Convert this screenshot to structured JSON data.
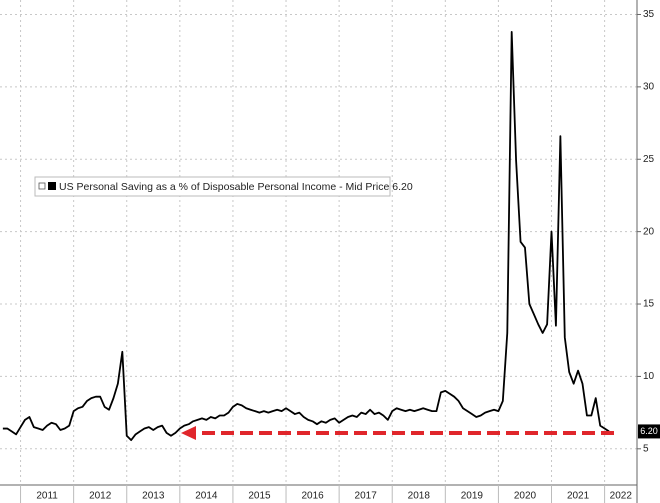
{
  "chart_data": {
    "type": "line",
    "x": [
      2010.667,
      2010.75,
      2010.833,
      2010.917,
      2011,
      2011.083,
      2011.167,
      2011.25,
      2011.333,
      2011.417,
      2011.5,
      2011.583,
      2011.667,
      2011.75,
      2011.833,
      2011.917,
      2012,
      2012.083,
      2012.167,
      2012.25,
      2012.333,
      2012.417,
      2012.5,
      2012.583,
      2012.667,
      2012.75,
      2012.833,
      2012.917,
      2013,
      2013.083,
      2013.167,
      2013.25,
      2013.333,
      2013.417,
      2013.5,
      2013.583,
      2013.667,
      2013.75,
      2013.833,
      2013.917,
      2014,
      2014.083,
      2014.167,
      2014.25,
      2014.333,
      2014.417,
      2014.5,
      2014.583,
      2014.667,
      2014.75,
      2014.833,
      2014.917,
      2015,
      2015.083,
      2015.167,
      2015.25,
      2015.333,
      2015.417,
      2015.5,
      2015.583,
      2015.667,
      2015.75,
      2015.833,
      2015.917,
      2016,
      2016.083,
      2016.167,
      2016.25,
      2016.333,
      2016.417,
      2016.5,
      2016.583,
      2016.667,
      2016.75,
      2016.833,
      2016.917,
      2017,
      2017.083,
      2017.167,
      2017.25,
      2017.333,
      2017.417,
      2017.5,
      2017.583,
      2017.667,
      2017.75,
      2017.833,
      2017.917,
      2018,
      2018.083,
      2018.167,
      2018.25,
      2018.333,
      2018.417,
      2018.5,
      2018.583,
      2018.667,
      2018.75,
      2018.833,
      2018.917,
      2019,
      2019.083,
      2019.167,
      2019.25,
      2019.333,
      2019.417,
      2019.5,
      2019.583,
      2019.667,
      2019.75,
      2019.833,
      2019.917,
      2020,
      2020.083,
      2020.167,
      2020.25,
      2020.333,
      2020.417,
      2020.5,
      2020.583,
      2020.667,
      2020.75,
      2020.833,
      2020.917,
      2021,
      2021.083,
      2021.167,
      2021.25,
      2021.333,
      2021.417,
      2021.5,
      2021.583,
      2021.667,
      2021.75,
      2021.833,
      2021.917,
      2022,
      2022.083
    ],
    "series": [
      {
        "name": "US Personal Saving as a % of Disposable Personal Income - Mid Price 6.20",
        "color": "#000000",
        "values": [
          6.4,
          6.4,
          6.2,
          6.0,
          6.5,
          7.0,
          7.2,
          6.5,
          6.4,
          6.3,
          6.6,
          6.8,
          6.7,
          6.3,
          6.4,
          6.6,
          7.6,
          7.8,
          7.9,
          8.3,
          8.5,
          8.6,
          8.6,
          7.9,
          7.7,
          8.5,
          9.5,
          11.7,
          5.9,
          5.6,
          6.0,
          6.2,
          6.4,
          6.5,
          6.3,
          6.5,
          6.6,
          6.1,
          5.9,
          6.1,
          6.4,
          6.6,
          6.7,
          6.9,
          7.0,
          7.1,
          7.0,
          7.2,
          7.1,
          7.3,
          7.3,
          7.5,
          7.9,
          8.1,
          8.0,
          7.8,
          7.7,
          7.6,
          7.5,
          7.6,
          7.5,
          7.6,
          7.7,
          7.6,
          7.8,
          7.6,
          7.4,
          7.5,
          7.2,
          7.0,
          6.9,
          6.7,
          6.9,
          6.8,
          7.0,
          7.1,
          6.8,
          7.0,
          7.2,
          7.3,
          7.2,
          7.5,
          7.4,
          7.7,
          7.4,
          7.5,
          7.3,
          7.0,
          7.6,
          7.8,
          7.7,
          7.6,
          7.7,
          7.6,
          7.7,
          7.8,
          7.7,
          7.6,
          7.6,
          8.9,
          9.0,
          8.8,
          8.6,
          8.3,
          7.8,
          7.6,
          7.4,
          7.2,
          7.3,
          7.5,
          7.6,
          7.7,
          7.6,
          8.3,
          13.0,
          33.8,
          24.9,
          19.3,
          18.9,
          15.0,
          14.3,
          13.6,
          13.0,
          13.6,
          20.0,
          13.5,
          26.6,
          12.7,
          10.3,
          9.5,
          10.4,
          9.5,
          7.3,
          7.3,
          8.5,
          6.6,
          6.4,
          6.2
        ]
      }
    ],
    "last_price_label": "6.20",
    "xlim": [
      2010.613,
      2022.61
    ],
    "xticks": [
      2011,
      2012,
      2013,
      2014,
      2015,
      2016,
      2017,
      2018,
      2019,
      2020,
      2021,
      2022
    ],
    "ylim": [
      2.5,
      36
    ],
    "yticks": [
      5,
      10,
      15,
      20,
      25,
      30,
      35
    ],
    "grid": true
  }
}
